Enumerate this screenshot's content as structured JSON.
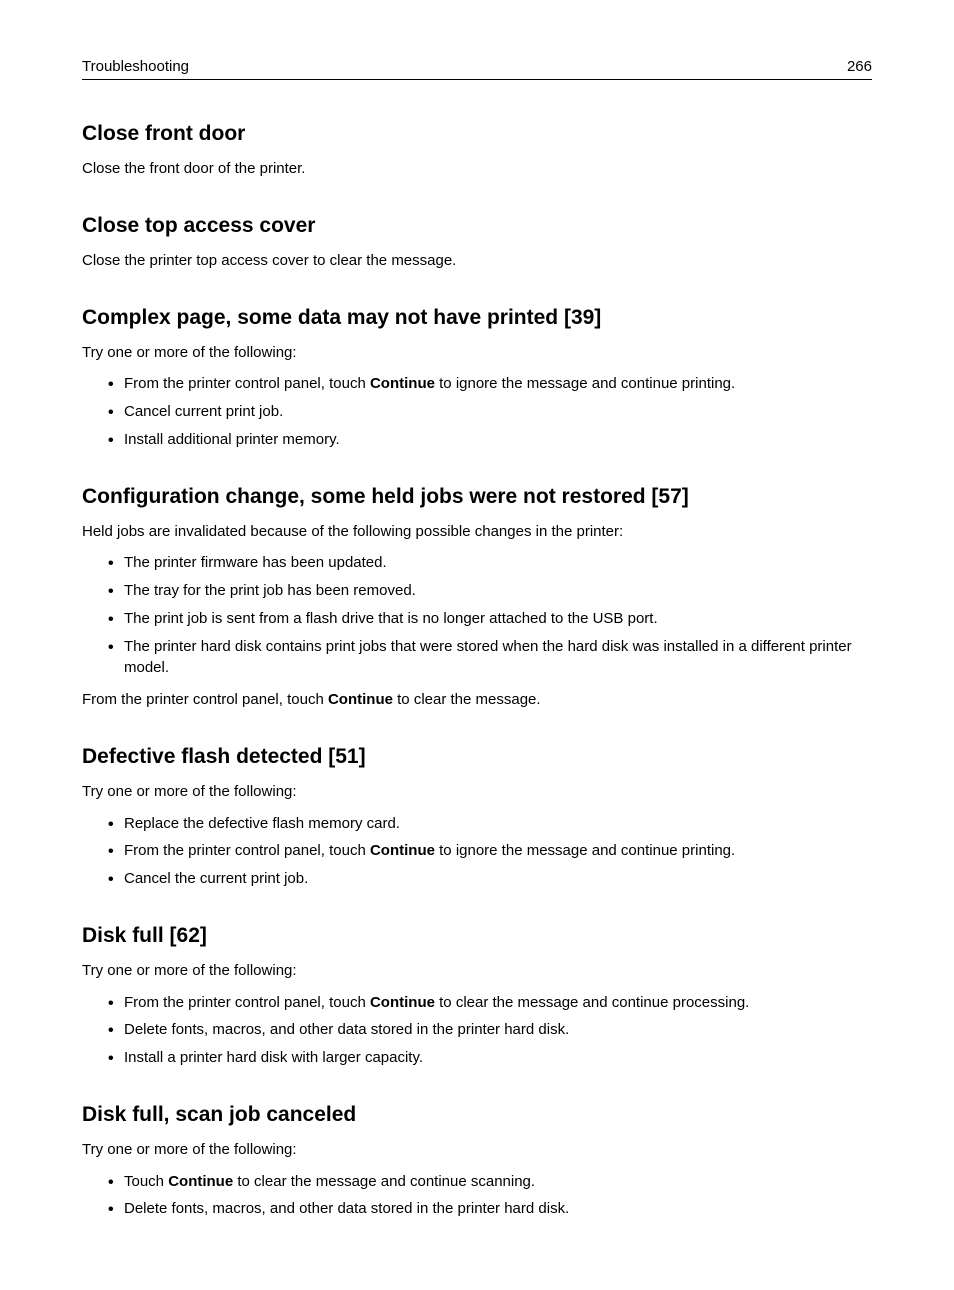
{
  "header": {
    "section": "Troubleshooting",
    "page_number": "266"
  },
  "sections": [
    {
      "heading": "Close front door",
      "paragraphs": [
        "Close the front door of the printer."
      ],
      "bullets": []
    },
    {
      "heading": "Close top access cover",
      "paragraphs": [
        "Close the printer top access cover to clear the message."
      ],
      "bullets": []
    },
    {
      "heading": "Complex page, some data may not have printed [39]",
      "paragraphs": [
        "Try one or more of the following:"
      ],
      "bullets": [
        [
          {
            "t": "From the printer control panel, touch "
          },
          {
            "t": "Continue",
            "bold": true
          },
          {
            "t": " to ignore the message and continue printing."
          }
        ],
        [
          {
            "t": "Cancel current print job."
          }
        ],
        [
          {
            "t": "Install additional printer memory."
          }
        ]
      ]
    },
    {
      "heading": "Configuration change, some held jobs were not restored [57]",
      "paragraphs": [
        "Held jobs are invalidated because of the following possible changes in the printer:"
      ],
      "bullets": [
        [
          {
            "t": "The printer firmware has been updated."
          }
        ],
        [
          {
            "t": "The tray for the print job has been removed."
          }
        ],
        [
          {
            "t": "The print job is sent from a flash drive that is no longer attached to the USB port."
          }
        ],
        [
          {
            "t": "The printer hard disk contains print jobs that were stored when the hard disk was installed in a different printer model."
          }
        ]
      ],
      "after_paragraphs": [
        [
          {
            "t": "From the printer control panel, touch "
          },
          {
            "t": "Continue",
            "bold": true
          },
          {
            "t": " to clear the message."
          }
        ]
      ]
    },
    {
      "heading": "Defective flash detected [51]",
      "paragraphs": [
        "Try one or more of the following:"
      ],
      "bullets": [
        [
          {
            "t": "Replace the defective flash memory card."
          }
        ],
        [
          {
            "t": "From the printer control panel, touch "
          },
          {
            "t": "Continue",
            "bold": true
          },
          {
            "t": " to ignore the message and continue printing."
          }
        ],
        [
          {
            "t": "Cancel the current print job."
          }
        ]
      ]
    },
    {
      "heading": "Disk full [62]",
      "paragraphs": [
        "Try one or more of the following:"
      ],
      "bullets": [
        [
          {
            "t": "From the printer control panel, touch "
          },
          {
            "t": "Continue",
            "bold": true
          },
          {
            "t": " to clear the message and continue processing."
          }
        ],
        [
          {
            "t": "Delete fonts, macros, and other data stored in the printer hard disk."
          }
        ],
        [
          {
            "t": "Install a printer hard disk with larger capacity."
          }
        ]
      ]
    },
    {
      "heading": "Disk full, scan job canceled",
      "paragraphs": [
        "Try one or more of the following:"
      ],
      "bullets": [
        [
          {
            "t": "Touch "
          },
          {
            "t": "Continue",
            "bold": true
          },
          {
            "t": " to clear the message and continue scanning."
          }
        ],
        [
          {
            "t": "Delete fonts, macros, and other data stored in the printer hard disk."
          }
        ]
      ]
    }
  ]
}
